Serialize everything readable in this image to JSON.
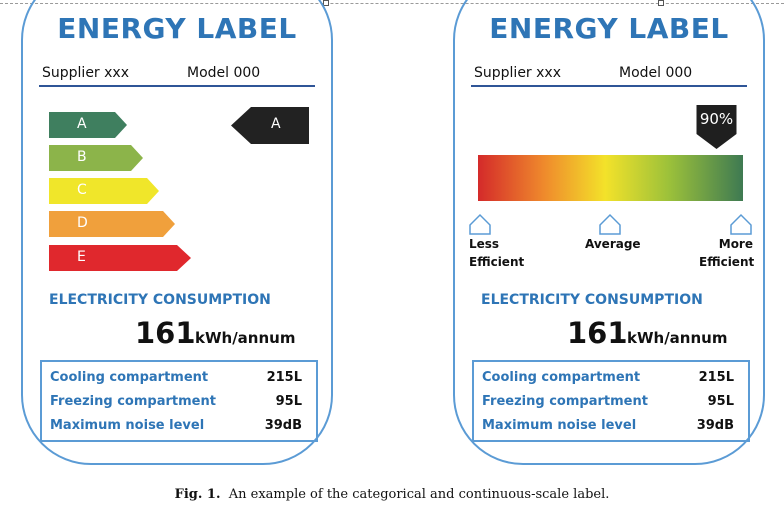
{
  "left_label": {
    "title": "ENERGY LABEL",
    "supplier": "Supplier xxx",
    "model": "Model 000",
    "classes": [
      {
        "letter": "A",
        "color": "#3f7f5f"
      },
      {
        "letter": "B",
        "color": "#8cb44a"
      },
      {
        "letter": "C",
        "color": "#f0e62a"
      },
      {
        "letter": "D",
        "color": "#f0a03c"
      },
      {
        "letter": "E",
        "color": "#e0282d"
      }
    ],
    "rating": "A",
    "consumption_heading": "ELECTRICITY CONSUMPTION",
    "consumption_value": "161",
    "consumption_unit": "kWh/annum",
    "specs": [
      {
        "label": "Cooling compartment",
        "value": "215L"
      },
      {
        "label": "Freezing compartment",
        "value": "95L"
      },
      {
        "label": "Maximum noise level",
        "value": "39dB"
      }
    ]
  },
  "right_label": {
    "title": "ENERGY LABEL",
    "supplier": "Supplier xxx",
    "model": "Model 000",
    "score_percent": 90,
    "score_text": "90%",
    "scale_labels": {
      "less": [
        "Less",
        "Efficient"
      ],
      "average": "Average",
      "more": [
        "More",
        "Efficient"
      ]
    },
    "consumption_heading": "ELECTRICITY CONSUMPTION",
    "consumption_value": "161",
    "consumption_unit": "kWh/annum",
    "specs": [
      {
        "label": "Cooling compartment",
        "value": "215L"
      },
      {
        "label": "Freezing compartment",
        "value": "95L"
      },
      {
        "label": "Maximum noise level",
        "value": "39dB"
      }
    ]
  },
  "caption": {
    "fig": "Fig. 1.",
    "text": "An example of the categorical and continuous-scale label."
  }
}
